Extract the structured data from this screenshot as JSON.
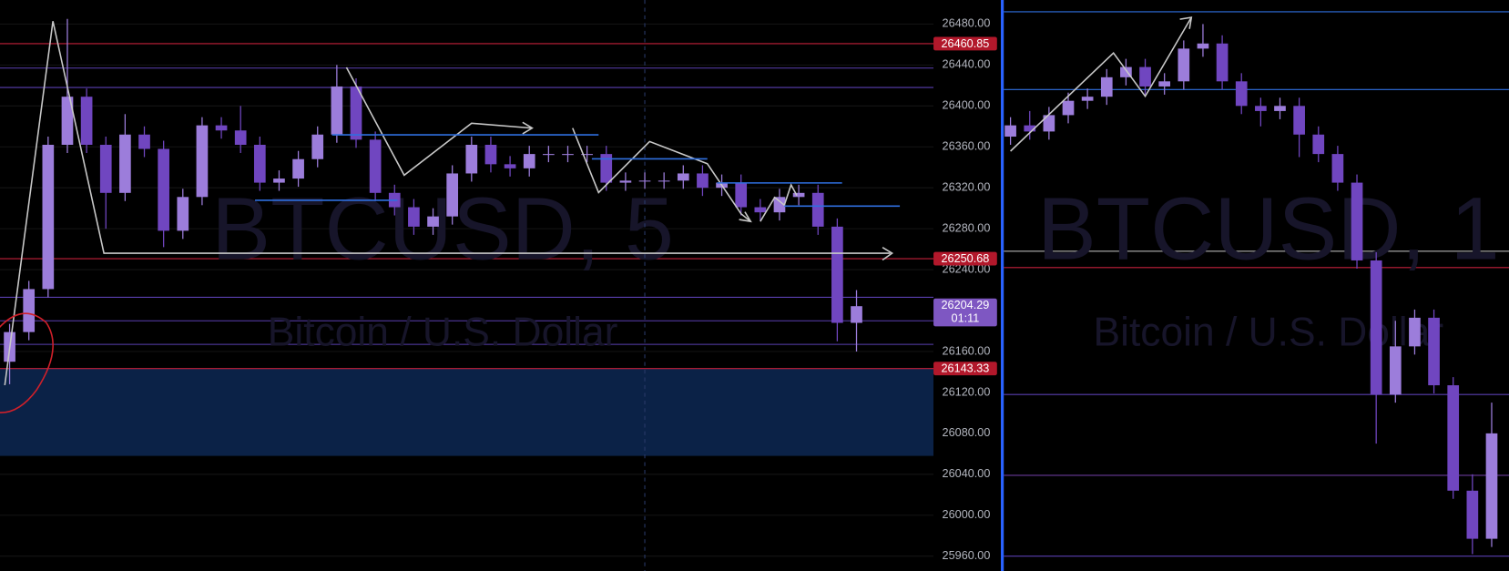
{
  "chart_data": [
    {
      "type": "candlestick",
      "symbol": "BTCUSD, 5",
      "description": "Bitcoin / U.S. Dollar",
      "up_color": "#9c7ddb",
      "down_color": "#7046c0",
      "ylim": [
        25945.5,
        26503.5
      ],
      "yticks": [
        {
          "value": 26480,
          "label": "26480.00"
        },
        {
          "value": 26440,
          "label": "26440.00"
        },
        {
          "value": 26400,
          "label": "26400.00"
        },
        {
          "value": 26360,
          "label": "26360.00"
        },
        {
          "value": 26320,
          "label": "26320.00"
        },
        {
          "value": 26280,
          "label": "26280.00"
        },
        {
          "value": 26240,
          "label": "26240.00"
        },
        {
          "value": 26160,
          "label": "26160.00"
        },
        {
          "value": 26120,
          "label": "26120.00"
        },
        {
          "value": 26080,
          "label": "26080.00"
        },
        {
          "value": 26040,
          "label": "26040.00"
        },
        {
          "value": 26000,
          "label": "26000.00"
        },
        {
          "value": 25960,
          "label": "25960.00"
        }
      ],
      "grid": true,
      "open": [
        26150,
        26179,
        26221,
        26362,
        26409,
        26362,
        26315,
        26372,
        26358,
        26278,
        26311,
        26381,
        26376,
        26362,
        26325,
        26329,
        26348,
        26372,
        26419,
        26367,
        26315,
        26301,
        26282,
        26292,
        26334,
        26362,
        26343,
        26339,
        26353,
        26353,
        26353,
        26353,
        26325,
        26327,
        26327,
        26327,
        26334,
        26320,
        26325,
        26301,
        26296,
        26311,
        26315,
        26282,
        26188
      ],
      "high": [
        26187,
        26229,
        26370,
        26485,
        26417,
        26370,
        26392,
        26380,
        26366,
        26319,
        26389,
        26389,
        26400,
        26370,
        26337,
        26356,
        26380,
        26440,
        26427,
        26375,
        26323,
        26309,
        26300,
        26342,
        26370,
        26370,
        26351,
        26361,
        26361,
        26361,
        26361,
        26361,
        26335,
        26335,
        26335,
        26342,
        26342,
        26333,
        26333,
        26309,
        26319,
        26323,
        26323,
        26290,
        26220
      ],
      "low": [
        26128,
        26171,
        26213,
        26354,
        26354,
        26280,
        26307,
        26350,
        26262,
        26270,
        26303,
        26368,
        26354,
        26317,
        26317,
        26321,
        26340,
        26364,
        26359,
        26307,
        26293,
        26274,
        26274,
        26284,
        26326,
        26335,
        26331,
        26331,
        26345,
        26345,
        26345,
        26317,
        26317,
        26319,
        26319,
        26319,
        26312,
        26312,
        26293,
        26288,
        26288,
        26303,
        26274,
        26170,
        26160
      ],
      "close": [
        26179,
        26221,
        26362,
        26409,
        26362,
        26315,
        26372,
        26358,
        26278,
        26311,
        26381,
        26376,
        26362,
        26325,
        26329,
        26348,
        26372,
        26419,
        26367,
        26315,
        26301,
        26282,
        26292,
        26334,
        26362,
        26343,
        26339,
        26353,
        26353,
        26353,
        26353,
        26325,
        26327,
        26327,
        26327,
        26334,
        26320,
        26325,
        26301,
        26296,
        26311,
        26315,
        26282,
        26188,
        26204.29
      ],
      "levels": [
        {
          "value": 26460.85,
          "color": "#c2213a"
        },
        {
          "value": 26437,
          "color": "#5a3fb0"
        },
        {
          "value": 26418,
          "color": "#5a3fb0"
        },
        {
          "value": 26250.68,
          "color": "#c2213a"
        },
        {
          "value": 26213,
          "color": "#5a3fb0"
        },
        {
          "value": 26190,
          "color": "#5a3fb0"
        },
        {
          "value": 26167,
          "color": "#5a3fb0"
        },
        {
          "value": 26143.33,
          "color": "#c2213a"
        }
      ],
      "zone": [
        26058,
        26143.33
      ],
      "marked_levels": [
        26460.85,
        26250.68,
        26143.33
      ],
      "last_price": 26204.29,
      "countdown": "01:11"
    },
    {
      "type": "candlestick",
      "symbol": "BTCUSD, 1",
      "description": "Bitcoin / U.S. Dollar",
      "up_color": "#9c7ddb",
      "down_color": "#7046c0",
      "ylim": [
        25945.5,
        26503.5
      ],
      "open": [
        26370,
        26381,
        26375,
        26391,
        26405,
        26409,
        26428,
        26438,
        26419,
        26424,
        26456,
        26461,
        26424,
        26400,
        26395,
        26400,
        26372,
        26353,
        26325,
        26249,
        26118,
        26165,
        26193,
        26127,
        26024,
        25977
      ],
      "high": [
        26389,
        26395,
        26399,
        26413,
        26417,
        26436,
        26446,
        26446,
        26432,
        26464,
        26480,
        26469,
        26432,
        26408,
        26408,
        26408,
        26380,
        26361,
        26333,
        26257,
        26190,
        26201,
        26201,
        26135,
        26040,
        26110
      ],
      "low": [
        26362,
        26367,
        26367,
        26383,
        26397,
        26401,
        26420,
        26411,
        26411,
        26416,
        26448,
        26416,
        26392,
        26380,
        26387,
        26350,
        26345,
        26317,
        26241,
        26070,
        26110,
        26157,
        26119,
        26016,
        25962,
        25969
      ],
      "close": [
        26381,
        26375,
        26391,
        26405,
        26409,
        26428,
        26438,
        26419,
        26424,
        26456,
        26461,
        26424,
        26400,
        26395,
        26400,
        26372,
        26353,
        26325,
        26249,
        26118,
        26165,
        26193,
        26127,
        26024,
        25977,
        26080
      ],
      "levels": [
        {
          "value": 26492,
          "color": "#2f6fe0"
        },
        {
          "value": 26416,
          "color": "#2f6fe0"
        },
        {
          "value": 26258,
          "color": "#c8c8c8"
        },
        {
          "value": 26242,
          "color": "#c2213a"
        },
        {
          "value": 26118,
          "color": "#5a3fb0"
        },
        {
          "value": 26039,
          "color": "#6a3a9a"
        },
        {
          "value": 25960,
          "color": "#5a3fb0"
        }
      ]
    }
  ]
}
